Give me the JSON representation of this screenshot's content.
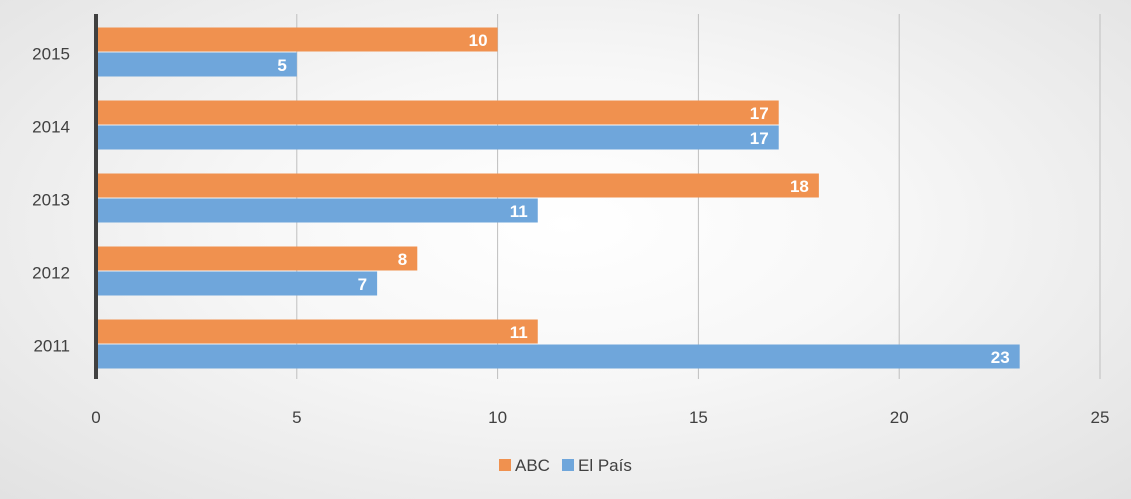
{
  "chart_data": {
    "type": "bar",
    "orientation": "horizontal",
    "categories": [
      "2015",
      "2014",
      "2013",
      "2012",
      "2011"
    ],
    "series": [
      {
        "name": "ABC",
        "values": [
          10,
          17,
          18,
          8,
          11
        ],
        "color": "#F0914F"
      },
      {
        "name": "El País",
        "values": [
          5,
          17,
          11,
          7,
          23
        ],
        "color": "#6FA6DB"
      }
    ],
    "xlim": [
      0,
      25
    ],
    "xticks": [
      0,
      5,
      10,
      15,
      20,
      25
    ],
    "grid": true,
    "legend_position": "bottom",
    "data_labels": true
  }
}
